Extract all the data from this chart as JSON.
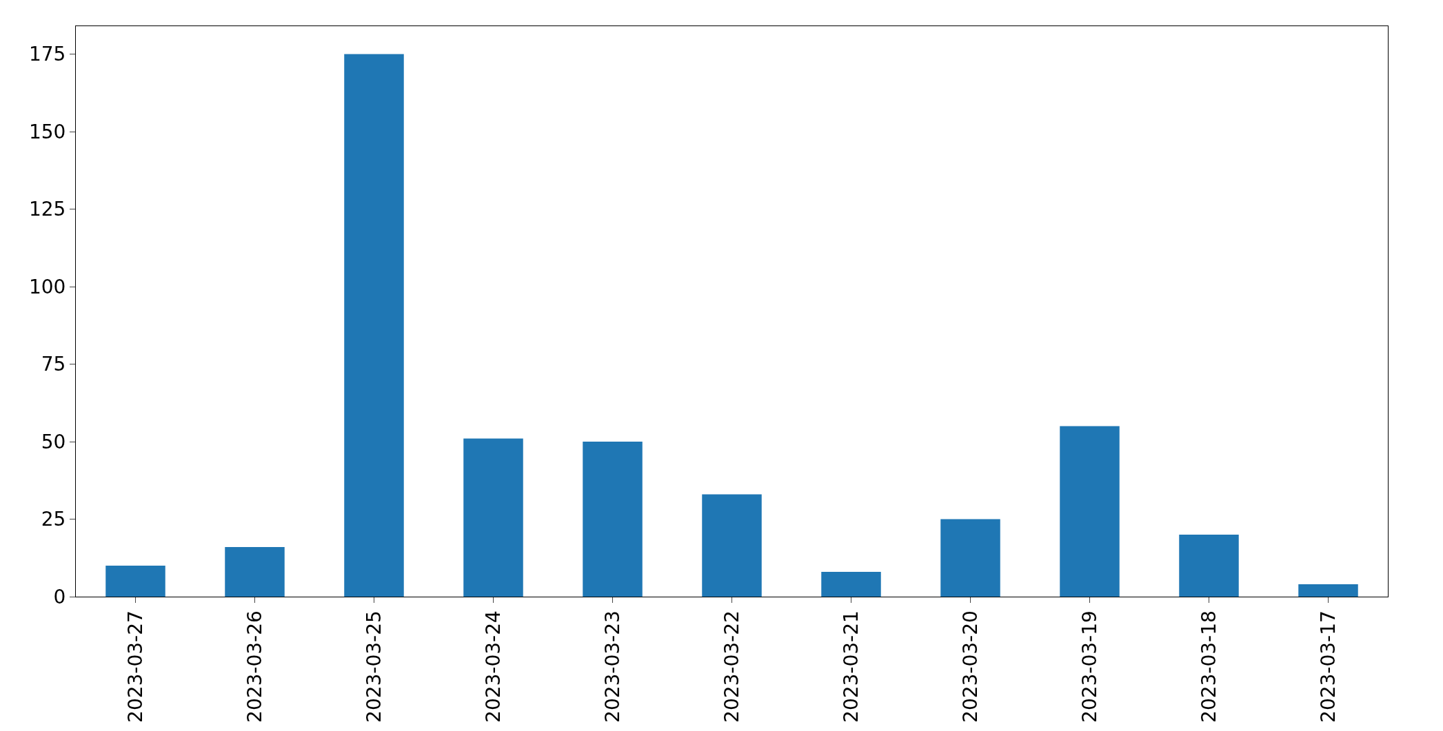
{
  "chart_data": {
    "type": "bar",
    "categories": [
      "2023-03-27",
      "2023-03-26",
      "2023-03-25",
      "2023-03-24",
      "2023-03-23",
      "2023-03-22",
      "2023-03-21",
      "2023-03-20",
      "2023-03-19",
      "2023-03-18",
      "2023-03-17"
    ],
    "values": [
      10,
      16,
      175,
      51,
      50,
      33,
      8,
      25,
      55,
      20,
      4
    ],
    "color": "#1f77b4",
    "ylim": [
      0,
      184
    ],
    "yticks": [
      0,
      25,
      50,
      75,
      100,
      125,
      150,
      175
    ]
  }
}
